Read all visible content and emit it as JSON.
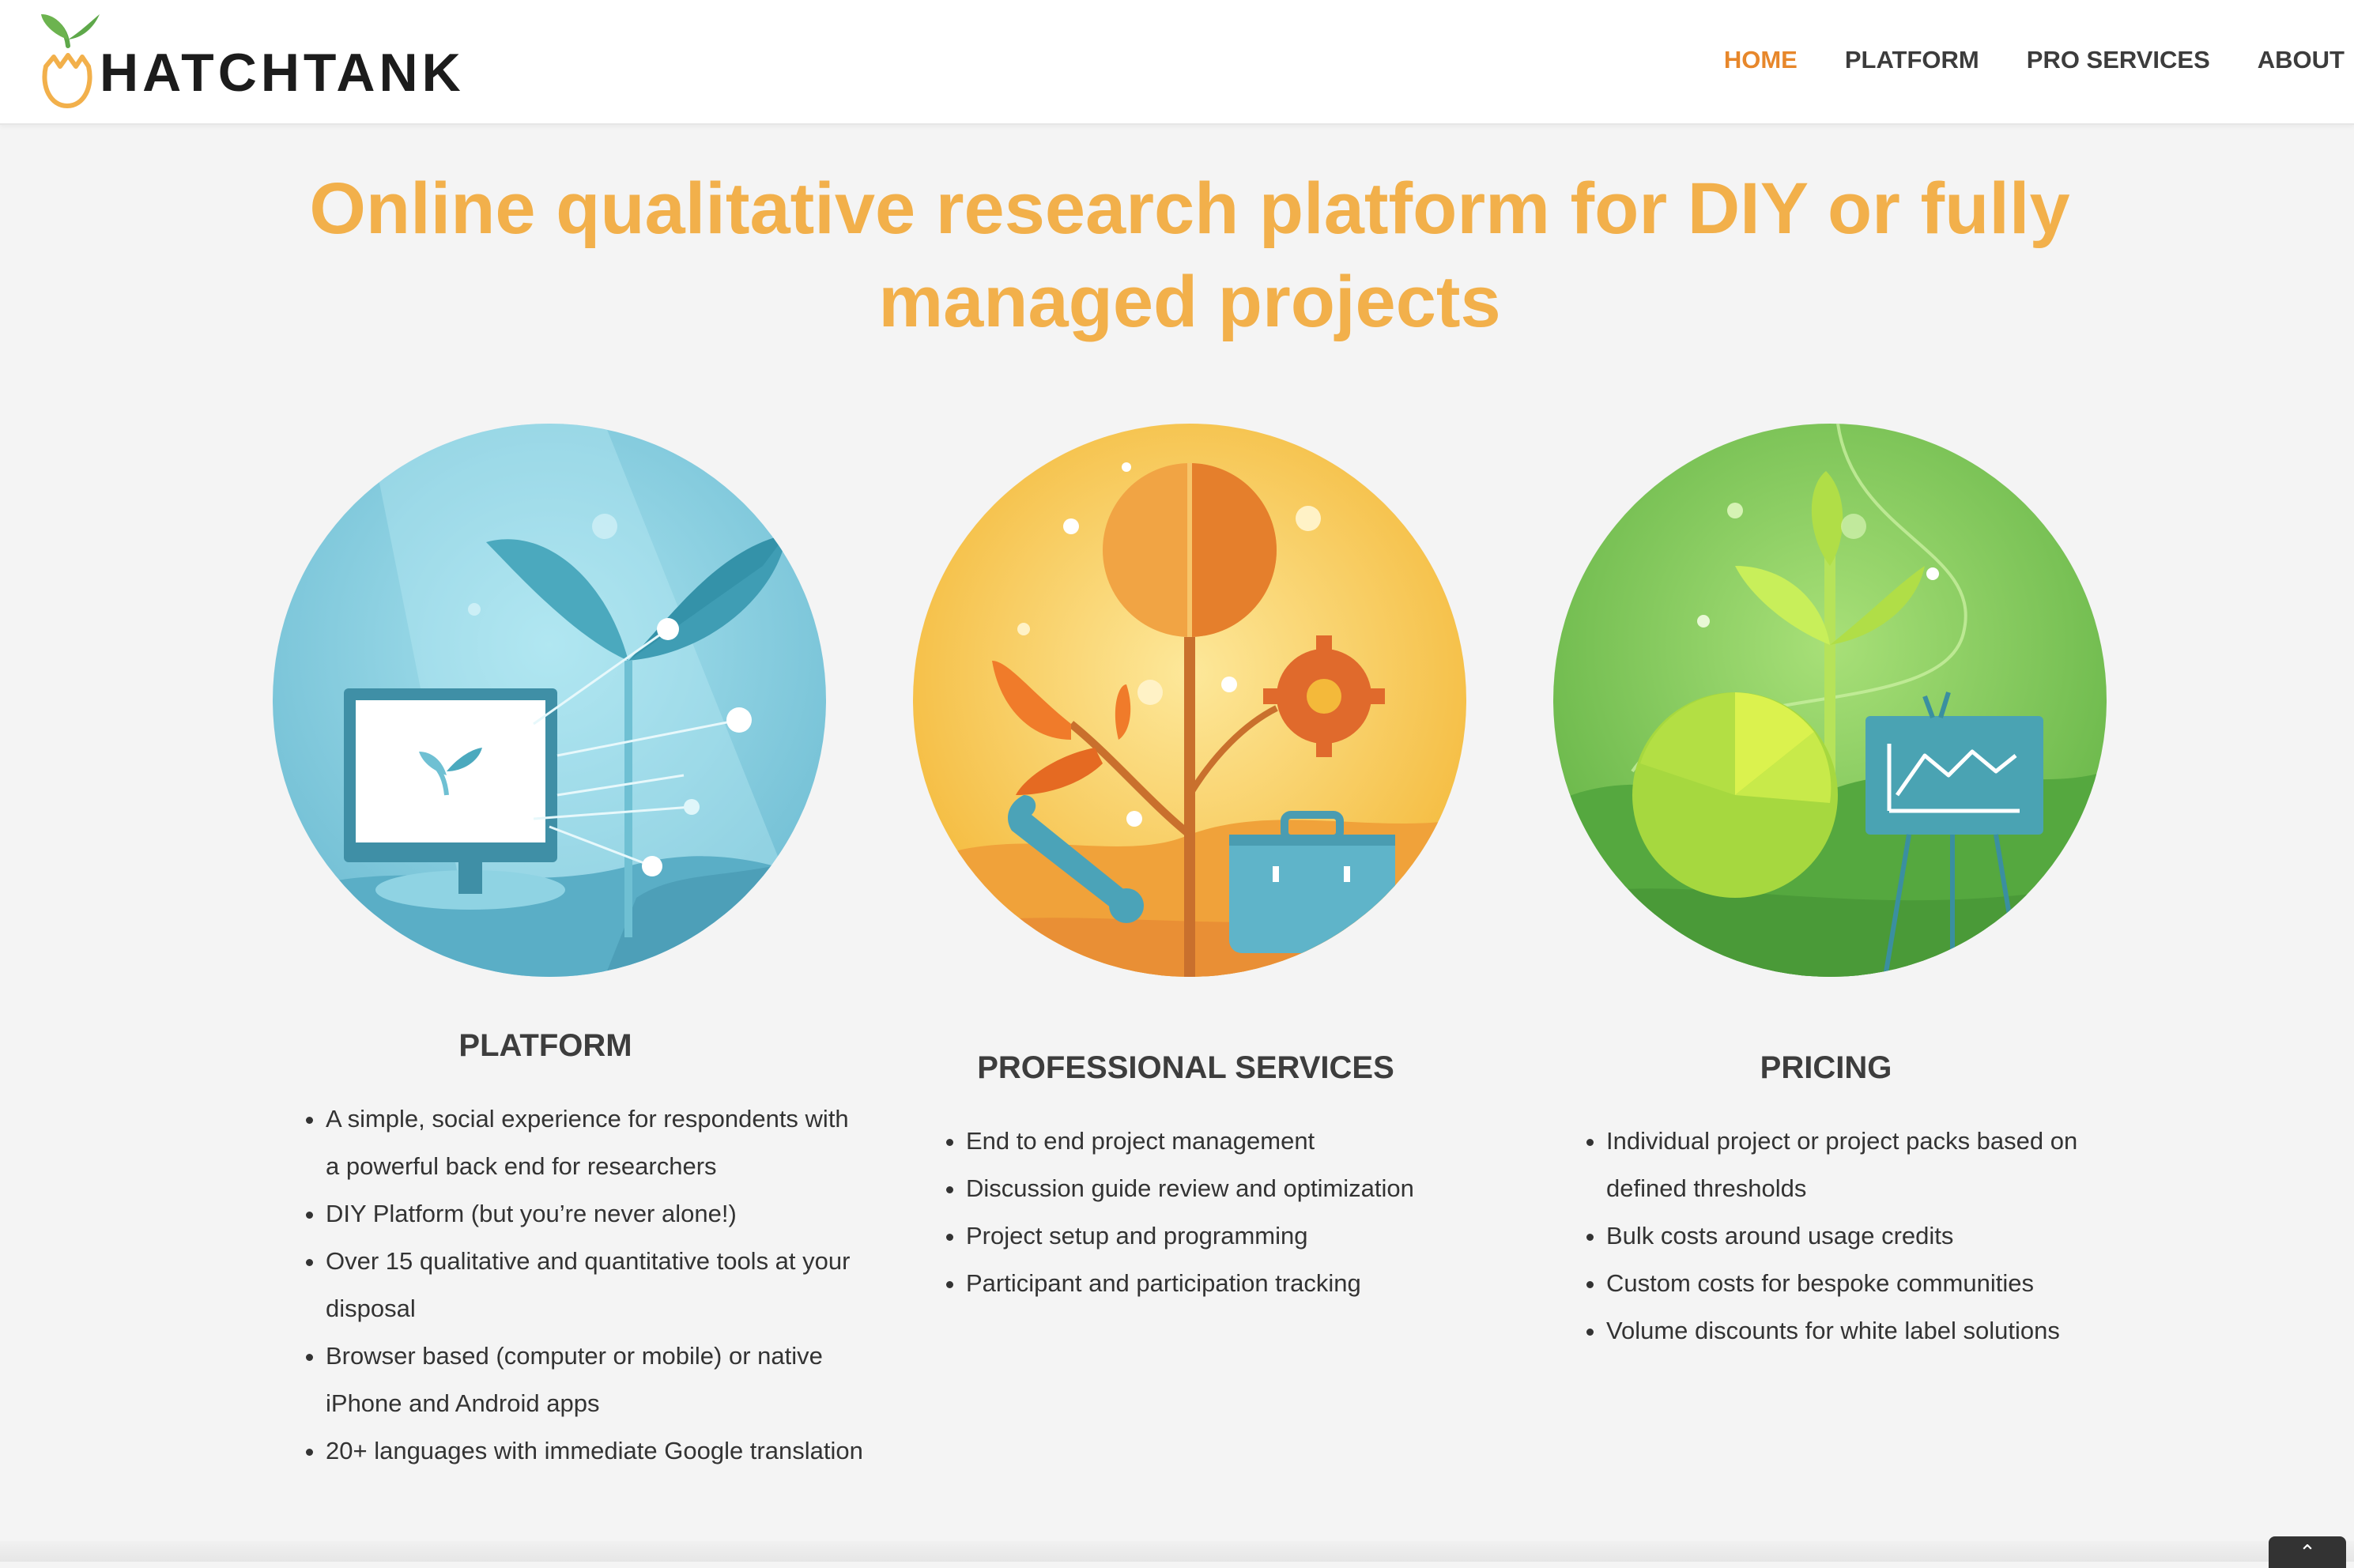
{
  "brand": {
    "name": "HATCHTANK",
    "icon": "sprout-egg-logo-icon",
    "accent": "#e7872b"
  },
  "nav": {
    "items": [
      {
        "label": "HOME",
        "active": true
      },
      {
        "label": "PLATFORM",
        "active": false
      },
      {
        "label": "PRO SERVICES",
        "active": false
      },
      {
        "label": "ABOUT",
        "active": false
      }
    ]
  },
  "hero": {
    "headline_line1": "Online qualitative research platform for DIY or fully",
    "headline_line2": "managed projects",
    "color": "#f2b04b"
  },
  "columns": [
    {
      "title": "PLATFORM",
      "illustration": "computer-and-sprout-illustration",
      "color": "#7fc8dd",
      "bullets": [
        "A simple, social experience for respondents with a powerful back end for researchers",
        "DIY Platform (but you’re never alone!)",
        "Over 15 qualitative and quantitative tools at your disposal",
        "Browser based (computer or mobile) or native iPhone and Android apps",
        "20+ languages with immediate Google translation"
      ]
    },
    {
      "title": "PROFESSIONAL SERVICES",
      "illustration": "tree-tools-briefcase-illustration",
      "color": "#f7c64a",
      "bullets": [
        "End to end project management",
        "Discussion guide review and optimization",
        "Project setup and programming",
        "Participant and participation tracking"
      ]
    },
    {
      "title": "PRICING",
      "illustration": "pie-chart-and-easel-illustration",
      "color": "#7ac257",
      "bullets": [
        "Individual project or project packs based on defined thresholds",
        "Bulk costs around usage credits",
        "Custom costs for bespoke communities",
        "Volume discounts for white label solutions"
      ]
    }
  ],
  "scroll_top": {
    "icon": "chevron-up-icon",
    "glyph": "⌃"
  }
}
